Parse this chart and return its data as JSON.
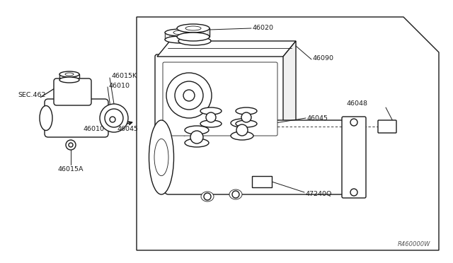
{
  "bg_color": "#ffffff",
  "line_color": "#1a1a1a",
  "lw_main": 1.0,
  "lw_thin": 0.6,
  "watermark": "R460000W",
  "fig_width": 6.4,
  "fig_height": 3.72,
  "dpi": 100,
  "labels": {
    "SEC462": "SEC.462",
    "46015K": "46015K",
    "46010": "46010",
    "46010b": "46010",
    "46015A": "46015A",
    "46020": "46020",
    "46090": "46090",
    "46045a": "46045",
    "46045b": "46045",
    "46048": "46048",
    "47240Q": "47240Q"
  }
}
